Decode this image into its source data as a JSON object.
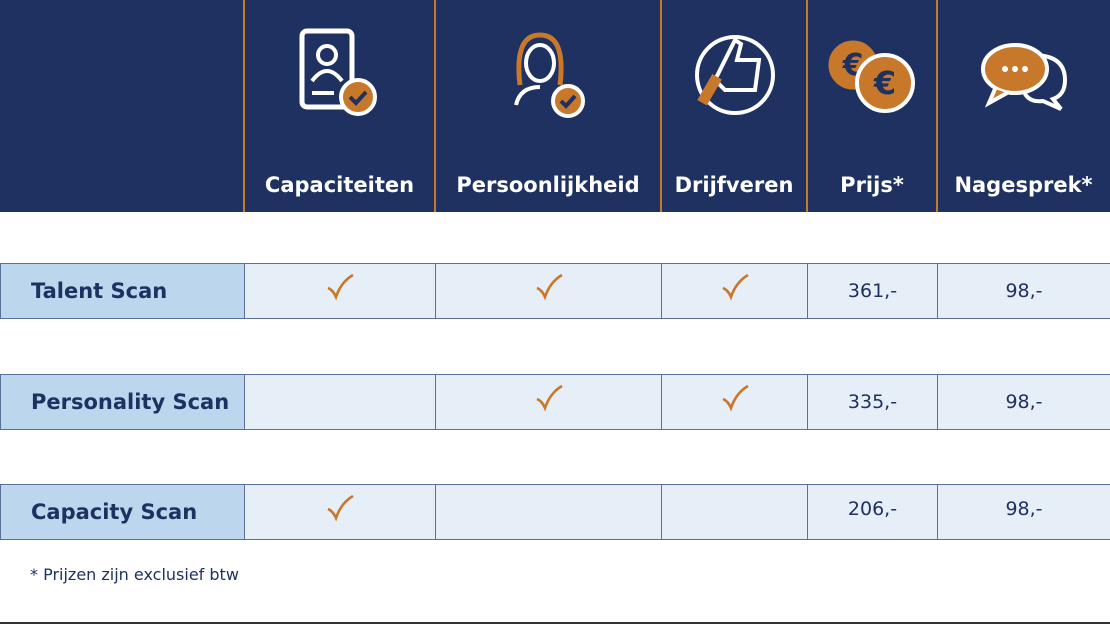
{
  "table": {
    "columns": [
      "Capaciteiten",
      "Persoonlijkheid",
      "Drijfveren",
      "Prijs*",
      "Nagesprek*"
    ],
    "rows": [
      {
        "label": "Talent Scan",
        "cells": [
          true,
          true,
          true,
          "361,-",
          "98,-"
        ]
      },
      {
        "label": "Personality Scan",
        "cells": [
          false,
          true,
          true,
          "335,-",
          "98,-"
        ]
      },
      {
        "label": "Capacity Scan",
        "cells": [
          true,
          false,
          false,
          "206,-",
          "98,-"
        ]
      }
    ]
  },
  "footnote": "* Prijzen zijn exclusief btw"
}
